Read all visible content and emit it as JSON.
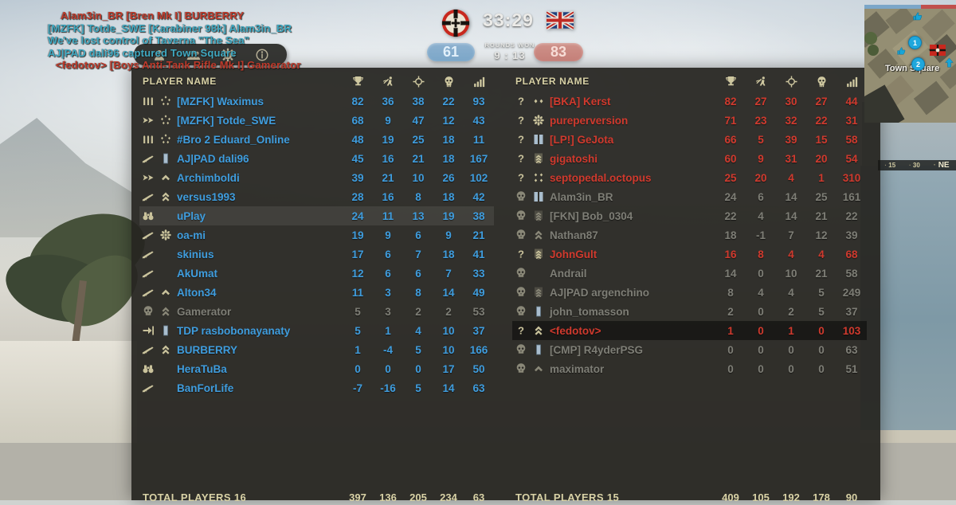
{
  "killfeed": {
    "lines": [
      {
        "text": "Alam3in_BR [Bren Mk I]  BURBERRY",
        "team": "red"
      },
      {
        "text": "[MZFK] Totde_SWE [Karabiner 98k]  Alam3in_BR",
        "team": "blue"
      },
      {
        "text": "We've lost control of Taverna \"The Sea\"",
        "team": "blue"
      },
      {
        "text": "AJ|PAD dali96 captured Town Square",
        "team": "blue"
      },
      {
        "text": "<fedotov> [Boys Anti-Tank Rifle Mk I]  Gamerator",
        "team": "red"
      }
    ]
  },
  "toolbar": {
    "icons": [
      "player-icon",
      "squad-icon",
      "settings-icon",
      "info-icon"
    ]
  },
  "match": {
    "timer": "33:29",
    "rounds_label": "ROUNDS WON",
    "rounds_score": "9 : 13",
    "axis_tickets": "61",
    "allies_tickets": "83",
    "axis_flag": "german-war-flag",
    "allies_flag": "union-jack-flag"
  },
  "minimap": {
    "location_label": "Town Square",
    "objectives": [
      "1",
      "2"
    ],
    "compass_ticks": [
      "15",
      "30",
      "NE"
    ],
    "ticket_bar": {
      "blue_pct": 62,
      "red_pct": 38
    }
  },
  "scoreboard": {
    "header_label": "PLAYER NAME",
    "stat_names": [
      "score",
      "captures",
      "kills",
      "deaths",
      "ping"
    ],
    "column_icons": [
      "trophy-icon",
      "capture-icon",
      "kills-icon",
      "deaths-icon",
      "ping-icon"
    ],
    "left_team": {
      "footer_label": "TOTAL PLAYERS 16",
      "totals": [
        397,
        136,
        205,
        234,
        63
      ],
      "players": [
        {
          "name": "[MZFK] Waximus",
          "class_icon": "bullets-icon",
          "rank_icon": "rank-stars-circle-icon",
          "values": [
            82,
            36,
            38,
            22,
            93
          ],
          "state": "normal"
        },
        {
          "name": "[MZFK] Totde_SWE",
          "class_icon": "arrows-icon",
          "rank_icon": "rank-stars-circle-icon",
          "values": [
            68,
            9,
            47,
            12,
            43
          ],
          "state": "normal"
        },
        {
          "name": "#Bro 2 Eduard_Online",
          "class_icon": "bullets-icon",
          "rank_icon": "rank-stars-circle-icon",
          "values": [
            48,
            19,
            25,
            18,
            11
          ],
          "state": "normal"
        },
        {
          "name": "AJ|PAD dali96",
          "class_icon": "rifle-icon",
          "rank_icon": "rank-bar-icon",
          "values": [
            45,
            16,
            21,
            18,
            167
          ],
          "state": "normal"
        },
        {
          "name": "Archimboldi",
          "class_icon": "arrows-icon",
          "rank_icon": "rank-chevron-icon",
          "values": [
            39,
            21,
            10,
            26,
            102
          ],
          "state": "normal"
        },
        {
          "name": "versus1993",
          "class_icon": "rifle-icon",
          "rank_icon": "rank-chevrons-icon",
          "values": [
            28,
            16,
            8,
            18,
            42
          ],
          "state": "normal"
        },
        {
          "name": "uPlay",
          "class_icon": "binoculars-icon",
          "rank_icon": "rank-none-icon",
          "values": [
            24,
            11,
            13,
            19,
            38
          ],
          "state": "self"
        },
        {
          "name": "oa-mi",
          "class_icon": "rifle-icon",
          "rank_icon": "rank-flower-icon",
          "values": [
            19,
            9,
            6,
            9,
            21
          ],
          "state": "normal"
        },
        {
          "name": "skinius",
          "class_icon": "rifle-icon",
          "rank_icon": "rank-none-icon",
          "values": [
            17,
            6,
            7,
            18,
            41
          ],
          "state": "normal"
        },
        {
          "name": "AkUmat",
          "class_icon": "rifle-icon",
          "rank_icon": "rank-none-icon",
          "values": [
            12,
            6,
            6,
            7,
            33
          ],
          "state": "normal"
        },
        {
          "name": "Alton34",
          "class_icon": "rifle-icon",
          "rank_icon": "rank-chevron-icon",
          "values": [
            11,
            3,
            8,
            14,
            49
          ],
          "state": "normal"
        },
        {
          "name": "Gamerator",
          "class_icon": "skull-icon",
          "rank_icon": "rank-chevrons-icon",
          "values": [
            5,
            3,
            2,
            2,
            53
          ],
          "state": "dead"
        },
        {
          "name": "TDP rasbobonayanaty",
          "class_icon": "deploy-icon",
          "rank_icon": "rank-bar-icon",
          "values": [
            5,
            1,
            4,
            10,
            37
          ],
          "state": "normal"
        },
        {
          "name": "BURBERRY",
          "class_icon": "rifle-icon",
          "rank_icon": "rank-chevrons-icon",
          "values": [
            1,
            -4,
            5,
            10,
            166
          ],
          "state": "normal"
        },
        {
          "name": "HeraTuBa",
          "class_icon": "binoculars-icon",
          "rank_icon": "rank-none-icon",
          "values": [
            0,
            0,
            0,
            17,
            50
          ],
          "state": "normal"
        },
        {
          "name": "BanForLife",
          "class_icon": "rifle-icon",
          "rank_icon": "rank-none-icon",
          "values": [
            -7,
            -16,
            5,
            14,
            63
          ],
          "state": "normal"
        }
      ]
    },
    "right_team": {
      "footer_label": "TOTAL PLAYERS 15",
      "totals": [
        409,
        105,
        192,
        178,
        90
      ],
      "players": [
        {
          "name": "[BKA] Kerst",
          "class_icon": "question-icon",
          "rank_icon": "rank-two-stars-icon",
          "values": [
            82,
            27,
            30,
            27,
            44
          ],
          "state": "normal"
        },
        {
          "name": "pureperversion",
          "class_icon": "question-icon",
          "rank_icon": "rank-flower-icon",
          "values": [
            71,
            23,
            32,
            22,
            31
          ],
          "state": "normal"
        },
        {
          "name": "[LP!] GeJota",
          "class_icon": "question-icon",
          "rank_icon": "rank-two-bars-icon",
          "values": [
            66,
            5,
            39,
            15,
            58
          ],
          "state": "normal"
        },
        {
          "name": "gigatoshi",
          "class_icon": "question-icon",
          "rank_icon": "rank-sergeant-icon",
          "values": [
            60,
            9,
            31,
            20,
            54
          ],
          "state": "normal"
        },
        {
          "name": "septopedal.octopus",
          "class_icon": "question-icon",
          "rank_icon": "rank-four-stars-icon",
          "values": [
            25,
            20,
            4,
            1,
            310
          ],
          "state": "normal"
        },
        {
          "name": "Alam3in_BR",
          "class_icon": "skull-icon",
          "rank_icon": "rank-two-bars-icon",
          "values": [
            24,
            6,
            14,
            25,
            161
          ],
          "state": "dead"
        },
        {
          "name": "[FKN] Bob_0304",
          "class_icon": "skull-icon",
          "rank_icon": "rank-sergeant-icon",
          "values": [
            22,
            4,
            14,
            21,
            22
          ],
          "state": "dead"
        },
        {
          "name": "Nathan87",
          "class_icon": "skull-icon",
          "rank_icon": "rank-chevrons-icon",
          "values": [
            18,
            -1,
            7,
            12,
            39
          ],
          "state": "dead"
        },
        {
          "name": "JohnGult",
          "class_icon": "question-icon",
          "rank_icon": "rank-sergeant-icon",
          "values": [
            16,
            8,
            4,
            4,
            68
          ],
          "state": "normal"
        },
        {
          "name": "Andrail",
          "class_icon": "skull-icon",
          "rank_icon": "rank-none-icon",
          "values": [
            14,
            0,
            10,
            21,
            58
          ],
          "state": "dead"
        },
        {
          "name": "AJ|PAD argenchino",
          "class_icon": "skull-icon",
          "rank_icon": "rank-sergeant-icon",
          "values": [
            8,
            4,
            4,
            5,
            249
          ],
          "state": "dead"
        },
        {
          "name": "john_tomasson",
          "class_icon": "skull-icon",
          "rank_icon": "rank-bar-icon",
          "values": [
            2,
            0,
            2,
            5,
            37
          ],
          "state": "dead"
        },
        {
          "name": "<fedotov>",
          "class_icon": "question-icon",
          "rank_icon": "rank-chevrons-icon",
          "values": [
            1,
            0,
            1,
            0,
            103
          ],
          "state": "highlight"
        },
        {
          "name": "[CMP] R4yderPSG",
          "class_icon": "skull-icon",
          "rank_icon": "rank-bar-icon",
          "values": [
            0,
            0,
            0,
            0,
            63
          ],
          "state": "dead"
        },
        {
          "name": "maximator",
          "class_icon": "skull-icon",
          "rank_icon": "rank-chevron-icon",
          "values": [
            0,
            0,
            0,
            0,
            51
          ],
          "state": "dead"
        }
      ]
    }
  },
  "colors": {
    "axis_text": "#3f9dde",
    "allies_text": "#d03a2e",
    "dead_text": "#7e7e76",
    "header_text": "#d9d2a6",
    "killfeed_red": "#bf3a2b",
    "killfeed_blue": "#3fa9c2",
    "ticket_blue": "#7ba6c8",
    "ticket_red": "#c47f78"
  }
}
